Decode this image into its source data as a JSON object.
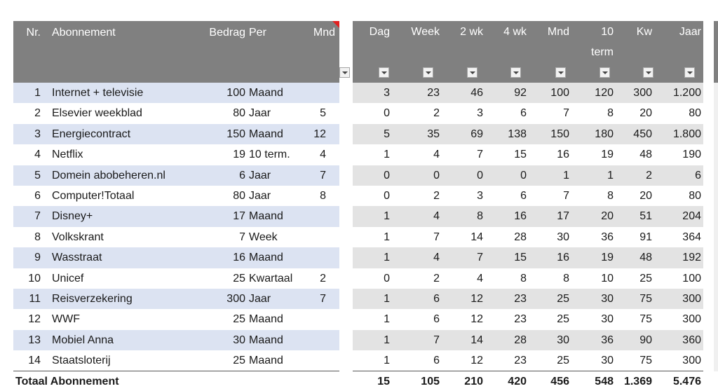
{
  "left_table": {
    "headers": {
      "nr": "Nr.",
      "abonnement": "Abonnement",
      "bedrag": "Bedrag",
      "per": "Per",
      "mnd": "Mnd"
    },
    "rows": [
      {
        "nr": "1",
        "name": "Internet + televisie",
        "bedrag": "100",
        "per": "Maand",
        "mnd": ""
      },
      {
        "nr": "2",
        "name": "Elsevier weekblad",
        "bedrag": "80",
        "per": "Jaar",
        "mnd": "5"
      },
      {
        "nr": "3",
        "name": "Energiecontract",
        "bedrag": "150",
        "per": "Maand",
        "mnd": "12"
      },
      {
        "nr": "4",
        "name": "Netflix",
        "bedrag": "19",
        "per": "10 term.",
        "mnd": "4"
      },
      {
        "nr": "5",
        "name": "Domein abobeheren.nl",
        "bedrag": "6",
        "per": "Jaar",
        "mnd": "7"
      },
      {
        "nr": "6",
        "name": "Computer!Totaal",
        "bedrag": "80",
        "per": "Jaar",
        "mnd": "8"
      },
      {
        "nr": "7",
        "name": "Disney+",
        "bedrag": "17",
        "per": "Maand",
        "mnd": ""
      },
      {
        "nr": "8",
        "name": "Volkskrant",
        "bedrag": "7",
        "per": "Week",
        "mnd": ""
      },
      {
        "nr": "9",
        "name": "Wasstraat",
        "bedrag": "16",
        "per": "Maand",
        "mnd": ""
      },
      {
        "nr": "10",
        "name": "Unicef",
        "bedrag": "25",
        "per": "Kwartaal",
        "mnd": "2"
      },
      {
        "nr": "11",
        "name": "Reisverzekering",
        "bedrag": "300",
        "per": "Jaar",
        "mnd": "7"
      },
      {
        "nr": "12",
        "name": "WWF",
        "bedrag": "25",
        "per": "Maand",
        "mnd": ""
      },
      {
        "nr": "13",
        "name": "Mobiel Anna",
        "bedrag": "30",
        "per": "Maand",
        "mnd": ""
      },
      {
        "nr": "14",
        "name": "Staatsloterij",
        "bedrag": "25",
        "per": "Maand",
        "mnd": ""
      }
    ]
  },
  "right_table": {
    "headers": [
      "Dag",
      "Week",
      "2 wk",
      "4 wk",
      "Mnd",
      "10\nterm",
      "Kw",
      "Jaar"
    ],
    "rows": [
      [
        "3",
        "23",
        "46",
        "92",
        "100",
        "120",
        "300",
        "1.200"
      ],
      [
        "0",
        "2",
        "3",
        "6",
        "7",
        "8",
        "20",
        "80"
      ],
      [
        "5",
        "35",
        "69",
        "138",
        "150",
        "180",
        "450",
        "1.800"
      ],
      [
        "1",
        "4",
        "7",
        "15",
        "16",
        "19",
        "48",
        "190"
      ],
      [
        "0",
        "0",
        "0",
        "0",
        "1",
        "1",
        "2",
        "6"
      ],
      [
        "0",
        "2",
        "3",
        "6",
        "7",
        "8",
        "20",
        "80"
      ],
      [
        "1",
        "4",
        "8",
        "16",
        "17",
        "20",
        "51",
        "204"
      ],
      [
        "1",
        "7",
        "14",
        "28",
        "30",
        "36",
        "91",
        "364"
      ],
      [
        "1",
        "4",
        "7",
        "15",
        "16",
        "19",
        "48",
        "192"
      ],
      [
        "0",
        "2",
        "4",
        "8",
        "8",
        "10",
        "25",
        "100"
      ],
      [
        "1",
        "6",
        "12",
        "23",
        "25",
        "30",
        "75",
        "300"
      ],
      [
        "1",
        "6",
        "12",
        "23",
        "25",
        "30",
        "75",
        "300"
      ],
      [
        "1",
        "7",
        "14",
        "28",
        "30",
        "36",
        "90",
        "360"
      ],
      [
        "1",
        "6",
        "12",
        "23",
        "25",
        "30",
        "75",
        "300"
      ]
    ]
  },
  "totals": {
    "label": "Totaal Abonnement",
    "values": [
      "15",
      "105",
      "210",
      "420",
      "456",
      "548",
      "1.369",
      "5.476"
    ]
  },
  "colors": {
    "header_bg": "#808080",
    "left_band": "#dce3f2",
    "right_band": "#e3e3e3",
    "comment_marker": "#e02020"
  },
  "icons": {
    "filter_dropdown": "chevron-down-icon",
    "comment_marker": "comment-indicator-icon"
  }
}
